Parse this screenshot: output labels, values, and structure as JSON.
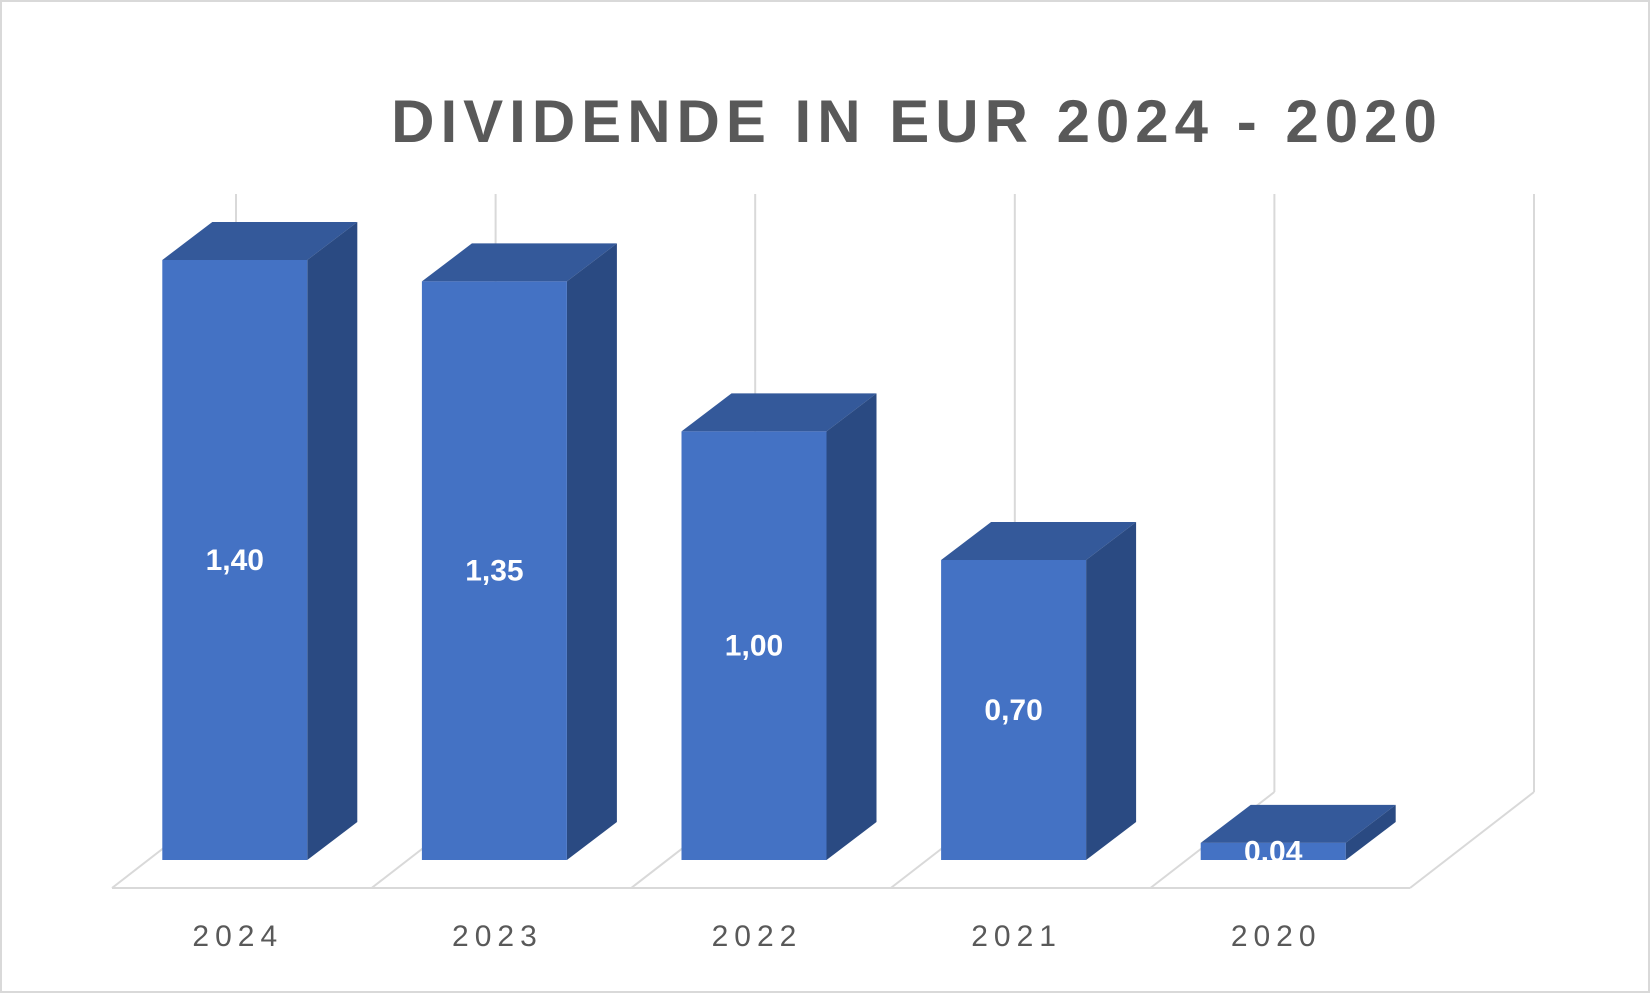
{
  "chart_data": {
    "type": "bar",
    "style": "3d-column",
    "title": "DIVIDENDE IN EUR 2024 - 2020",
    "categories": [
      "2024",
      "2023",
      "2022",
      "2021",
      "2020"
    ],
    "values": [
      1.4,
      1.35,
      1.0,
      0.7,
      0.04
    ],
    "value_labels": [
      "1,40",
      "1,35",
      "1,00",
      "0,70",
      "0,04"
    ],
    "ylim": [
      0,
      1.4
    ],
    "grid": true,
    "colors": {
      "front": "#4472c4",
      "side": "#2a4a82",
      "top": "#34599a",
      "grid": "#d9d9d9"
    }
  }
}
